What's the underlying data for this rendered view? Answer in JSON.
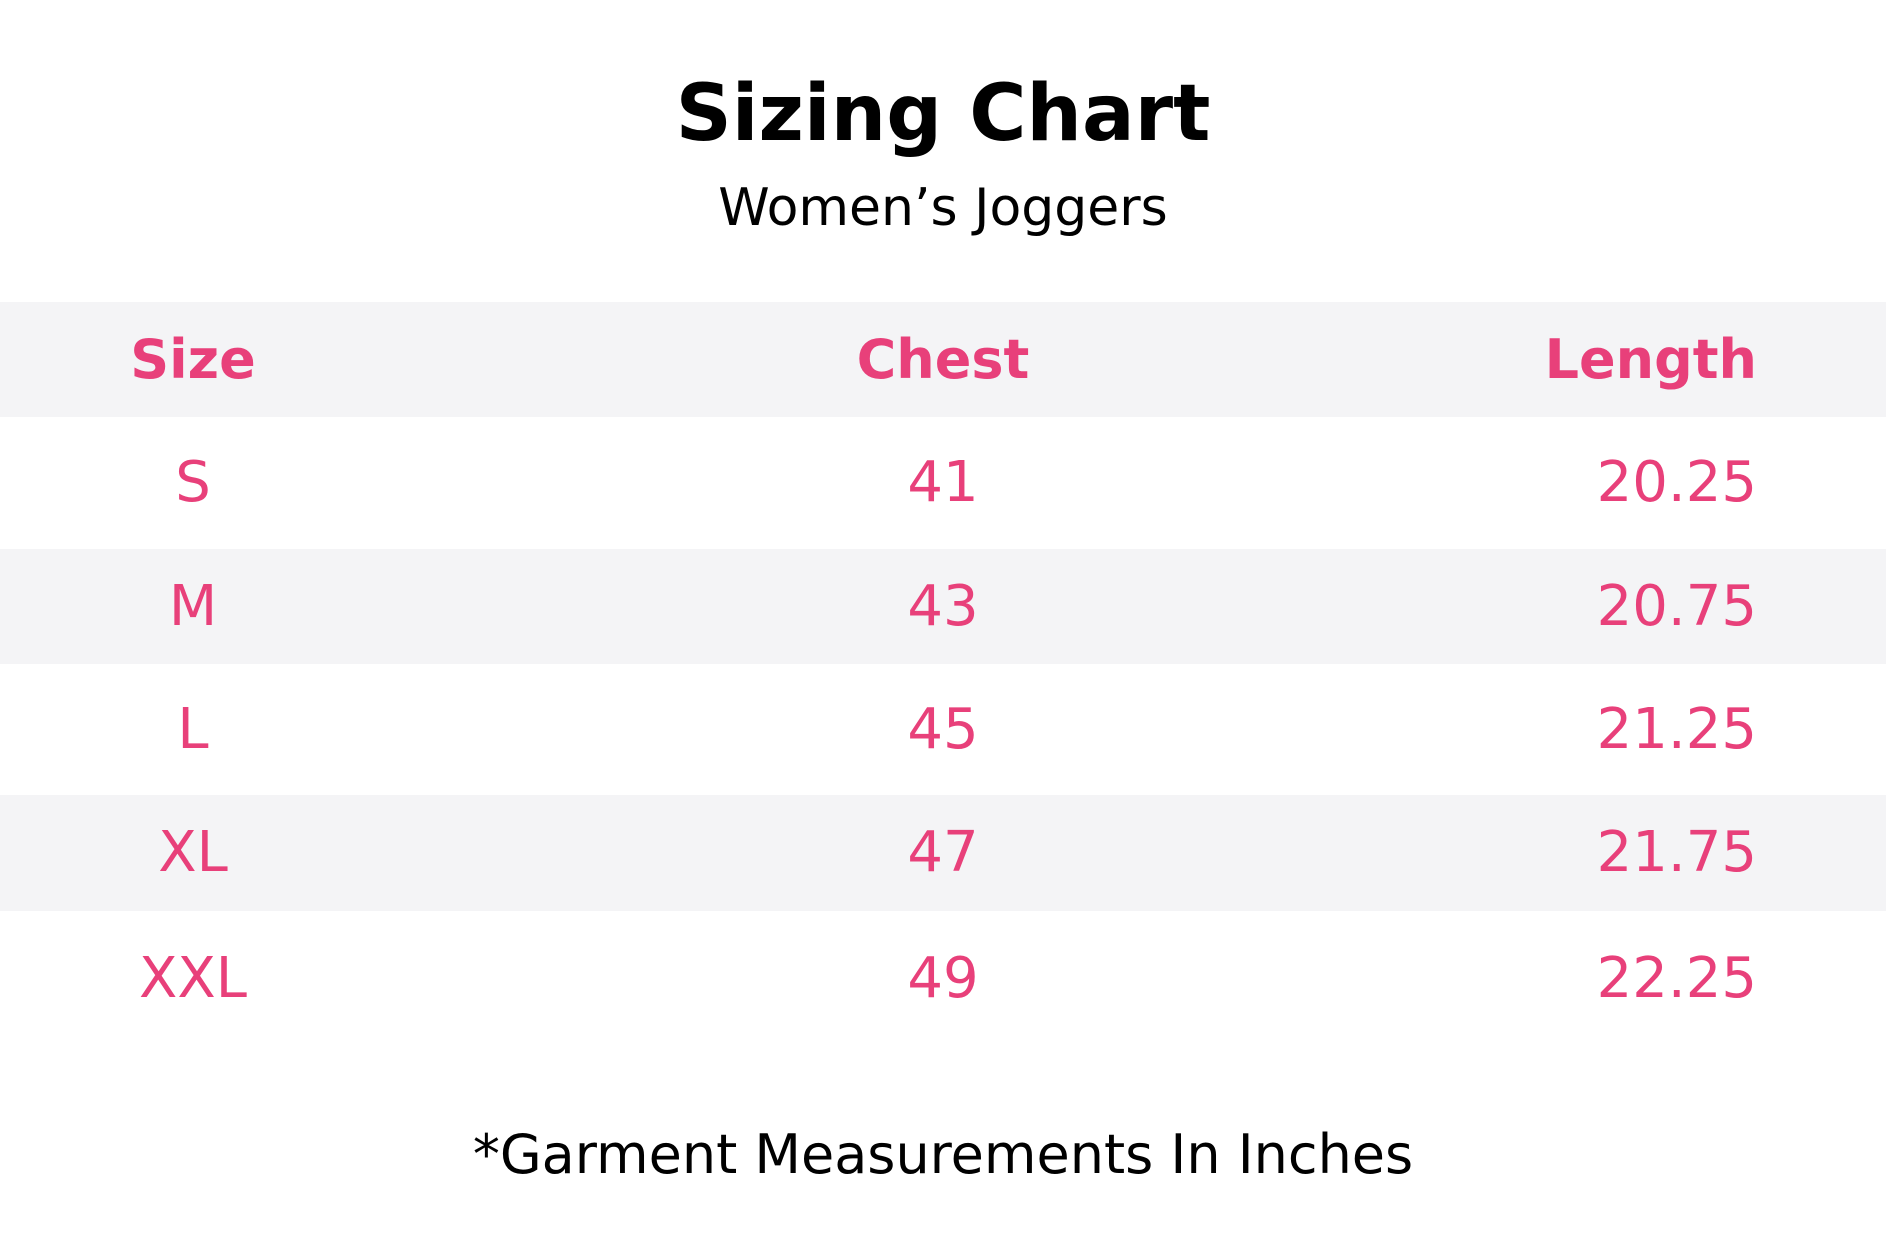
{
  "header": {
    "title": "Sizing Chart",
    "subtitle": "Women’s Joggers"
  },
  "table": {
    "columns": [
      "Size",
      "Chest",
      "Length"
    ],
    "rows": [
      [
        "S",
        41,
        20.25
      ],
      [
        "M",
        43,
        20.75
      ],
      [
        "L",
        45,
        21.25
      ],
      [
        "XL",
        47,
        21.75
      ],
      [
        "XXL",
        49,
        22.25
      ]
    ]
  },
  "footnote": "*Garment Measurements In Inches"
}
